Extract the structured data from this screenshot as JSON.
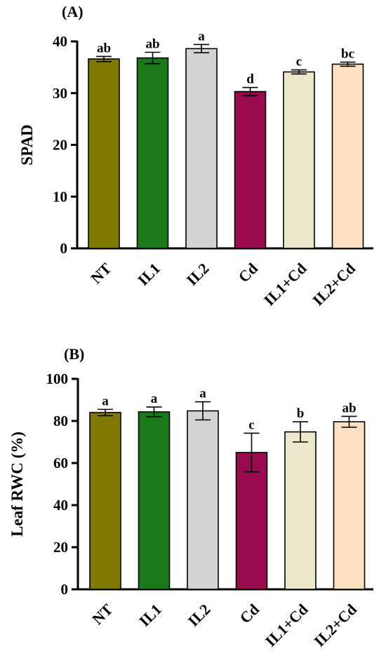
{
  "chart_data": [
    {
      "type": "bar",
      "panel_label": "(A)",
      "ylabel": "SPAD",
      "ylim": [
        0,
        40
      ],
      "yticks": [
        0,
        10,
        20,
        30,
        40
      ],
      "categories": [
        "NT",
        "IL1",
        "IL2",
        "Cd",
        "IL1+Cd",
        "IL2+Cd"
      ],
      "values": [
        36.6,
        36.8,
        38.6,
        30.3,
        34.1,
        35.6
      ],
      "errors": [
        0.5,
        1.1,
        0.8,
        0.8,
        0.4,
        0.4
      ],
      "letters": [
        "ab",
        "ab",
        "a",
        "d",
        "c",
        "bc"
      ],
      "colors": [
        "#807900",
        "#1a7a1a",
        "#d3d3d3",
        "#990a4f",
        "#ede8cc",
        "#fddfc1"
      ]
    },
    {
      "type": "bar",
      "panel_label": "(B)",
      "ylabel": "Leaf RWC (%)",
      "ylim": [
        0,
        100
      ],
      "yticks": [
        0,
        20,
        40,
        60,
        80,
        100
      ],
      "categories": [
        "NT",
        "IL1",
        "IL2",
        "Cd",
        "IL1+Cd",
        "IL2+Cd"
      ],
      "values": [
        84.0,
        84.3,
        84.8,
        65.0,
        74.8,
        79.6
      ],
      "errors": [
        1.5,
        2.3,
        4.3,
        9.2,
        4.8,
        2.6
      ],
      "letters": [
        "a",
        "a",
        "a",
        "c",
        "b",
        "ab"
      ],
      "colors": [
        "#807900",
        "#1a7a1a",
        "#d3d3d3",
        "#990a4f",
        "#ede8cc",
        "#fddfc1"
      ]
    }
  ]
}
